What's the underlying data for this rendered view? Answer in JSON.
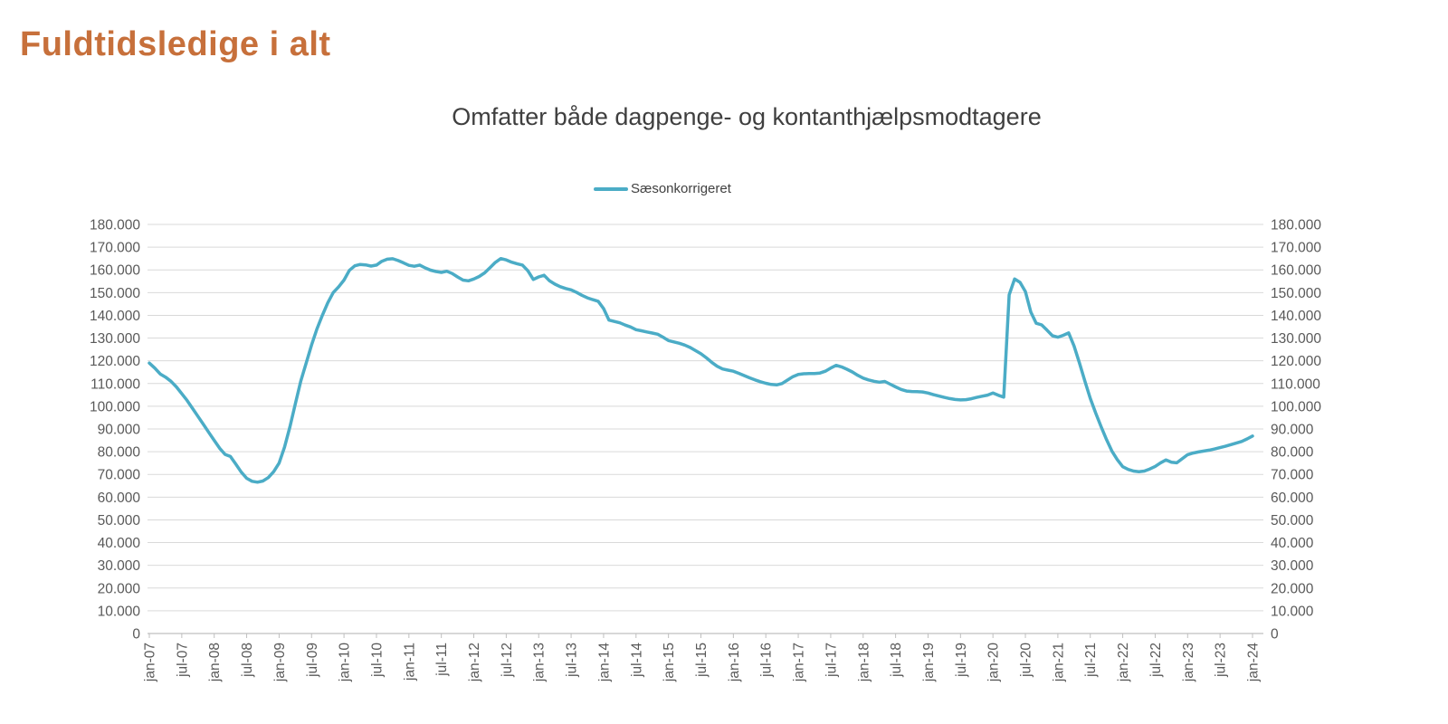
{
  "title": "Fuldtidsledige i alt",
  "colors": {
    "title": "#C7703B",
    "subtitle": "#3F3F3F",
    "line": "#4BACC6",
    "axis_labels": "#595959",
    "gridline": "#D9D9D9",
    "axis_line": "#BFBFBF"
  },
  "chart_data": {
    "type": "line",
    "title": "Fuldtidsledige i alt",
    "subtitle": "Omfatter både dagpenge- og kontanthjælpsmodtagere",
    "legend": [
      "Sæsonkorrigeret"
    ],
    "legend_position": "top-center",
    "grid": "horizontal",
    "x_frequency": "monthly",
    "x_start": "jan-07",
    "x_end": "jan-24",
    "ylim": [
      0,
      180000
    ],
    "y_tick_step": 10000,
    "y_axis_sides": "both",
    "y_tick_labels": [
      "0",
      "10.000",
      "20.000",
      "30.000",
      "40.000",
      "50.000",
      "60.000",
      "70.000",
      "80.000",
      "90.000",
      "100.000",
      "110.000",
      "120.000",
      "130.000",
      "140.000",
      "150.000",
      "160.000",
      "170.000",
      "180.000"
    ],
    "x_tick_labels": [
      "jan-07",
      "jul-07",
      "jan-08",
      "jul-08",
      "jan-09",
      "jul-09",
      "jan-10",
      "jul-10",
      "jan-11",
      "jul-11",
      "jan-12",
      "jul-12",
      "jan-13",
      "jul-13",
      "jan-14",
      "jul-14",
      "jan-15",
      "jul-15",
      "jan-16",
      "jul-16",
      "jan-17",
      "jul-17",
      "jan-18",
      "jul-18",
      "jan-19",
      "jul-19",
      "jan-20",
      "jul-20",
      "jan-21",
      "jul-21",
      "jan-22",
      "jul-22",
      "jan-23",
      "jul-23",
      "jan-24"
    ],
    "series": [
      {
        "name": "Sæsonkorrigeret",
        "color": "#4BACC6",
        "values": [
          119000,
          116800,
          114200,
          112800,
          111000,
          108500,
          105500,
          102500,
          99000,
          95500,
          92000,
          88500,
          85000,
          81500,
          78800,
          77900,
          74500,
          71000,
          68300,
          67000,
          66600,
          67100,
          68600,
          71200,
          75000,
          82000,
          91000,
          101000,
          111000,
          119000,
          127000,
          134000,
          140000,
          145500,
          150000,
          152500,
          155500,
          159800,
          161800,
          162400,
          162200,
          161700,
          162100,
          163800,
          164700,
          164900,
          164100,
          163100,
          162000,
          161600,
          162100,
          160900,
          159900,
          159300,
          158900,
          159400,
          158400,
          156900,
          155500,
          155200,
          156000,
          157100,
          158700,
          161000,
          163300,
          165000,
          164400,
          163400,
          162700,
          162100,
          159600,
          155800,
          156900,
          157600,
          155200,
          153700,
          152600,
          151800,
          151200,
          150100,
          148800,
          147700,
          146900,
          146200,
          143000,
          137900,
          137300,
          136700,
          135700,
          134900,
          133700,
          133200,
          132700,
          132200,
          131700,
          130400,
          128900,
          128300,
          127700,
          126900,
          125900,
          124500,
          123100,
          121300,
          119300,
          117600,
          116400,
          115900,
          115400,
          114500,
          113500,
          112500,
          111600,
          110800,
          110100,
          109600,
          109400,
          110000,
          111500,
          113000,
          114000,
          114300,
          114400,
          114400,
          114600,
          115400,
          116800,
          118000,
          117300,
          116300,
          115100,
          113600,
          112400,
          111600,
          111000,
          110600,
          110900,
          109700,
          108500,
          107400,
          106700,
          106500,
          106400,
          106300,
          105800,
          105100,
          104500,
          103900,
          103400,
          103000,
          102800,
          102900,
          103300,
          103900,
          104400,
          104900,
          105800,
          104800,
          104000,
          149000,
          156000,
          154500,
          150500,
          141500,
          136500,
          135800,
          133500,
          131000,
          130400,
          131200,
          132300,
          126500,
          119000,
          111000,
          103500,
          97000,
          91000,
          85300,
          80300,
          76500,
          73400,
          72200,
          71500,
          71200,
          71500,
          72400,
          73500,
          75100,
          76400,
          75400,
          75100,
          76900,
          78700,
          79400,
          79900,
          80300,
          80700,
          81200,
          81800,
          82400,
          83100,
          83800,
          84500,
          85600,
          86900
        ]
      }
    ]
  }
}
